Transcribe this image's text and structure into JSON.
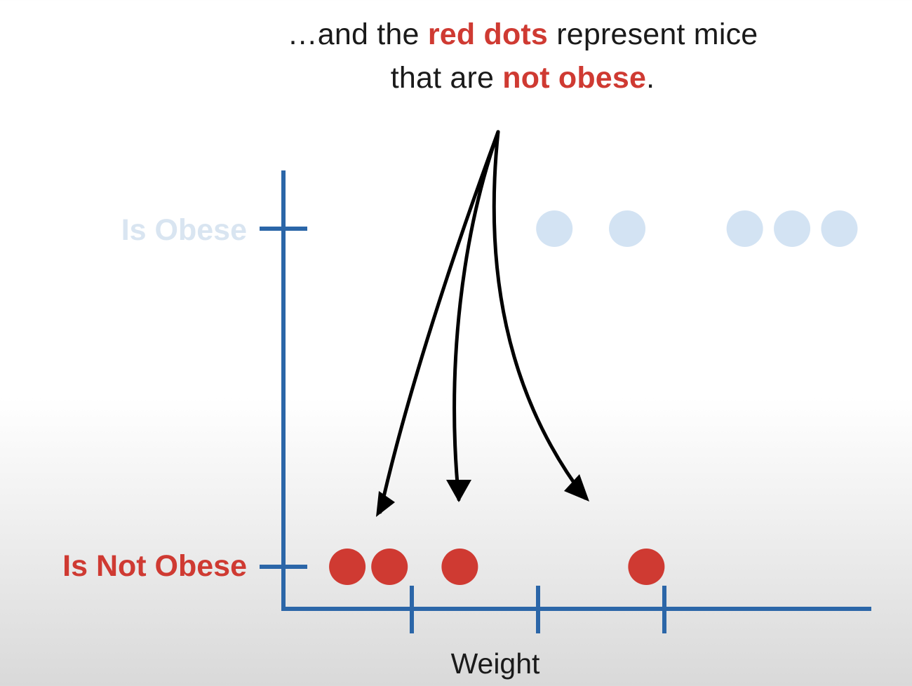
{
  "caption": {
    "line1_before": "…and the ",
    "line1_highlight": "red dots",
    "line1_after": " represent mice",
    "line2_before": "that are ",
    "line2_highlight": "not obese",
    "line2_after": "."
  },
  "colors": {
    "axis": "#2b66a8",
    "red": "#cf3a32",
    "light_blue": "#d3e3f3",
    "light_label": "#d9e5f1",
    "arrow": "#000000"
  },
  "chart_data": {
    "type": "scatter",
    "xlabel": "Weight",
    "ylabel": "",
    "x_ticks": 3,
    "y_categories": [
      "Is Not Obese",
      "Is Obese"
    ],
    "xlim": [
      0,
      4.6
    ],
    "series": [
      {
        "category": "Is Not Obese",
        "x": [
          0.5,
          0.83,
          1.38,
          2.84
        ],
        "color": "#cf3a32"
      },
      {
        "category": "Is Obese",
        "x": [
          2.12,
          2.69,
          3.61,
          3.98,
          4.35
        ],
        "color": "#d3e3f3"
      }
    ],
    "arrows": {
      "count": 3
    }
  }
}
